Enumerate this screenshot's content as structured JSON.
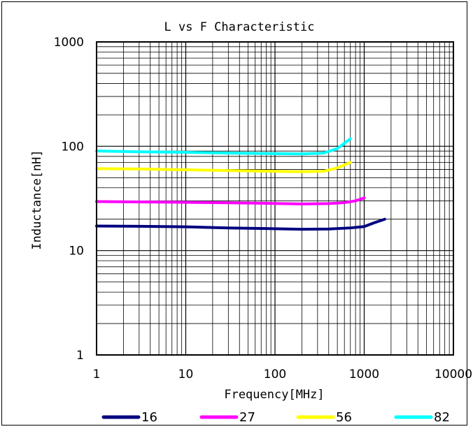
{
  "chart_data": {
    "type": "line",
    "title": "L vs F Characteristic",
    "xlabel": "Frequency[MHz]",
    "ylabel": "Inductance[nH]",
    "x_scale": "log",
    "y_scale": "log",
    "xlim": [
      1,
      10000
    ],
    "ylim": [
      1,
      1000
    ],
    "x_ticks": [
      "1",
      "10",
      "100",
      "1000",
      "10000"
    ],
    "y_ticks": [
      "1",
      "10",
      "100",
      "1000"
    ],
    "grid": true,
    "legend_position": "bottom",
    "series": [
      {
        "name": "16",
        "color": "#000080",
        "x": [
          1,
          3,
          10,
          30,
          100,
          200,
          400,
          700,
          1000,
          1300,
          1700
        ],
        "y": [
          17.2,
          17.1,
          16.9,
          16.5,
          16.2,
          16.0,
          16.1,
          16.5,
          17.0,
          18.5,
          20.0
        ]
      },
      {
        "name": "27",
        "color": "#ff00ff",
        "x": [
          1,
          3,
          10,
          30,
          100,
          200,
          400,
          600,
          800,
          1000
        ],
        "y": [
          29.5,
          29.3,
          29.0,
          28.7,
          28.3,
          28.0,
          28.2,
          28.8,
          30.0,
          32.0
        ]
      },
      {
        "name": "56",
        "color": "#ffff00",
        "x": [
          1,
          3,
          10,
          30,
          100,
          200,
          350,
          500,
          700
        ],
        "y": [
          61.0,
          60.5,
          59.5,
          58.5,
          57.5,
          57.0,
          57.5,
          62.0,
          70.0
        ]
      },
      {
        "name": "82",
        "color": "#00ffff",
        "x": [
          1,
          3,
          10,
          30,
          100,
          200,
          350,
          500,
          700
        ],
        "y": [
          90.0,
          88.5,
          87.5,
          86.0,
          85.0,
          84.5,
          86.0,
          95.0,
          118.0
        ]
      }
    ]
  }
}
